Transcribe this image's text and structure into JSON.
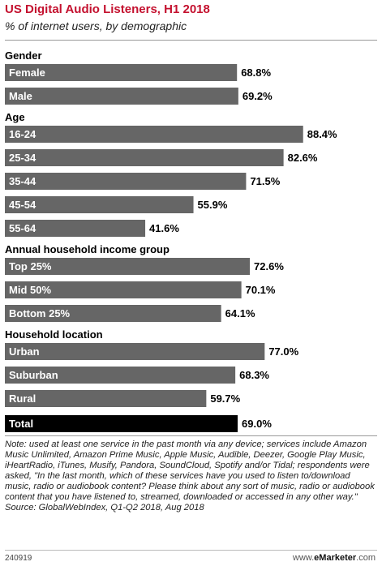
{
  "header": {
    "title": "US Digital Audio Listeners, H1 2018",
    "subtitle": "% of internet users, by demographic"
  },
  "chart_data": {
    "type": "bar",
    "orientation": "horizontal",
    "xlim": [
      0,
      100
    ],
    "value_suffix": "%",
    "grid": false,
    "groups": [
      {
        "label": "Gender",
        "items": [
          {
            "label": "Female",
            "value": 68.8,
            "display": "68.8%"
          },
          {
            "label": "Male",
            "value": 69.2,
            "display": "69.2%"
          }
        ]
      },
      {
        "label": "Age",
        "items": [
          {
            "label": "16-24",
            "value": 88.4,
            "display": "88.4%"
          },
          {
            "label": "25-34",
            "value": 82.6,
            "display": "82.6%"
          },
          {
            "label": "35-44",
            "value": 71.5,
            "display": "71.5%"
          },
          {
            "label": "45-54",
            "value": 55.9,
            "display": "55.9%"
          },
          {
            "label": "55-64",
            "value": 41.6,
            "display": "41.6%"
          }
        ]
      },
      {
        "label": "Annual household income group",
        "items": [
          {
            "label": "Top 25%",
            "value": 72.6,
            "display": "72.6%"
          },
          {
            "label": "Mid 50%",
            "value": 70.1,
            "display": "70.1%"
          },
          {
            "label": "Bottom 25%",
            "value": 64.1,
            "display": "64.1%"
          }
        ]
      },
      {
        "label": "Household location",
        "items": [
          {
            "label": "Urban",
            "value": 77.0,
            "display": "77.0%"
          },
          {
            "label": "Suburban",
            "value": 68.3,
            "display": "68.3%"
          },
          {
            "label": "Rural",
            "value": 59.7,
            "display": "59.7%"
          }
        ]
      },
      {
        "label": "",
        "items": [
          {
            "label": "Total",
            "value": 69.0,
            "display": "69.0%",
            "highlight": true
          }
        ]
      }
    ]
  },
  "colors": {
    "title": "#c4112f",
    "bar": "#666666",
    "bar_highlight": "#000000",
    "bar_label": "#ffffff"
  },
  "note": {
    "text": "Note: used at least one service in the past month via any device; services include Amazon Music Unlimited, Amazon Prime Music, Apple Music, Audible, Deezer, Google Play Music, iHeartRadio, iTunes, Musify, Pandora, SoundCloud, Spotify and/or Tidal; respondents were asked, \"In the last month, which of these services have you used to listen to/download music, radio or audiobook content? Please think about any sort of music, radio or audiobook content that you have listened to, streamed, downloaded or accessed in any other way.\"",
    "source": "Source: GlobalWebIndex, Q1-Q2 2018, Aug 2018"
  },
  "footer": {
    "chart_id": "240919",
    "brand_prefix": "www.",
    "brand_name": "eMarketer",
    "brand_suffix": ".com"
  }
}
